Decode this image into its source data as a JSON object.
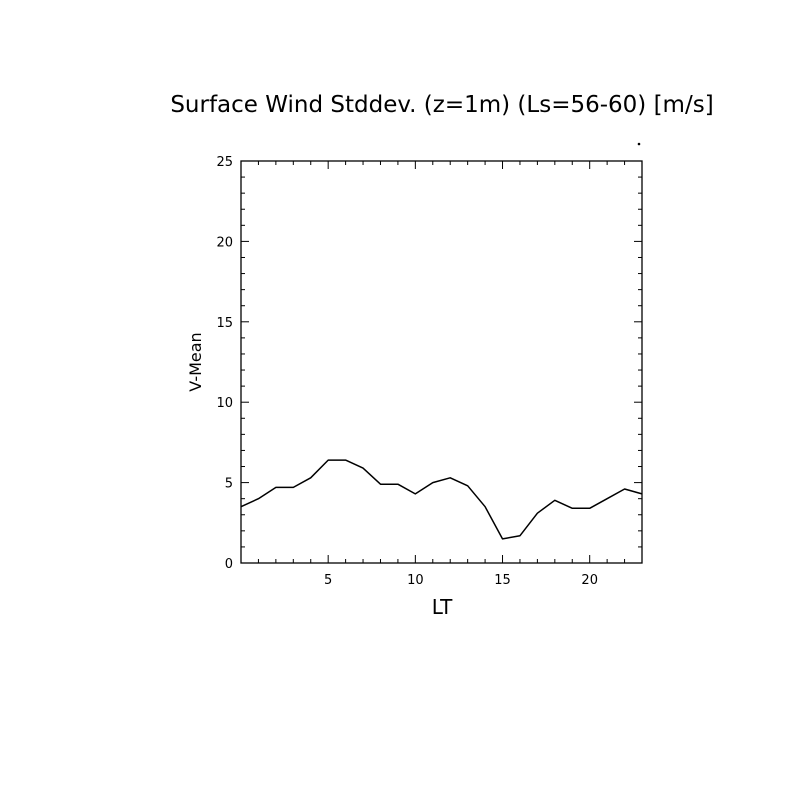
{
  "chart_data": {
    "type": "line",
    "title": "Surface Wind Stddev. (z=1m) (Ls=56-60) [m/s]",
    "xlabel": "LT",
    "ylabel": "V-Mean",
    "xlim": [
      0,
      23
    ],
    "ylim": [
      0,
      25
    ],
    "x_major_ticks": [
      5,
      10,
      15,
      20
    ],
    "y_major_ticks": [
      0,
      5,
      10,
      15,
      20,
      25
    ],
    "grid": false,
    "series": [
      {
        "x": [
          0,
          1,
          2,
          3,
          4,
          5,
          6,
          7,
          8,
          9,
          10,
          11,
          12,
          13,
          14,
          15,
          16,
          17,
          18,
          19,
          20,
          21,
          22,
          23
        ],
        "y": [
          3.5,
          4.0,
          4.7,
          4.7,
          5.3,
          6.4,
          6.4,
          5.9,
          4.9,
          4.9,
          4.3,
          5.0,
          5.3,
          4.8,
          3.5,
          1.5,
          1.7,
          3.1,
          3.9,
          3.4,
          3.4,
          4.0,
          4.6,
          4.3
        ],
        "color": "#000000"
      }
    ]
  }
}
